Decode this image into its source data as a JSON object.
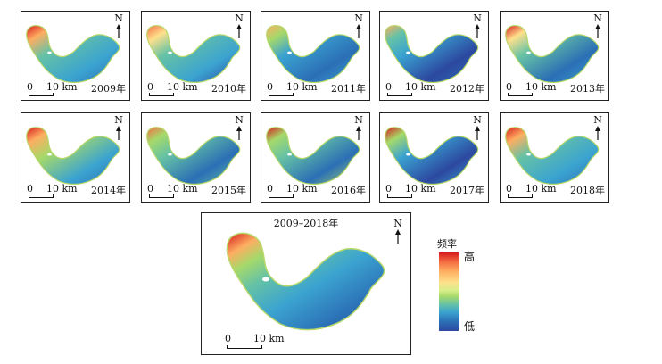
{
  "panels": [
    {
      "year": "2009年"
    },
    {
      "year": "2010年"
    },
    {
      "year": "2011年"
    },
    {
      "year": "2012年"
    },
    {
      "year": "2013年"
    },
    {
      "year": "2014年"
    },
    {
      "year": "2015年"
    },
    {
      "year": "2016年"
    },
    {
      "year": "2017年"
    },
    {
      "year": "2018年"
    }
  ],
  "scale": {
    "zero": "0",
    "dist": "10 km"
  },
  "north": "N",
  "summary": {
    "title": "2009–2018年"
  },
  "legend": {
    "title": "频率",
    "high": "高",
    "low": "低"
  },
  "colors": {
    "high": "#d7191c",
    "mid": "#a6d96a",
    "low": "#2c48a0"
  }
}
